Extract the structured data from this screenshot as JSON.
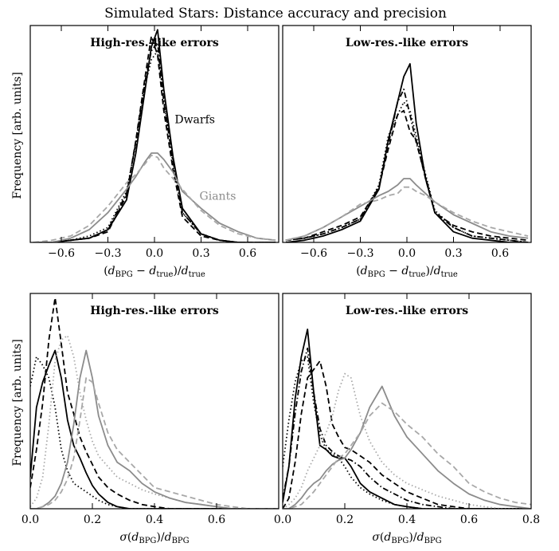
{
  "figure": {
    "title": "Simulated Stars: Distance accuracy and precision"
  },
  "colors": {
    "dwarfs": "#000000",
    "giants": "#8c8c8c",
    "giants_light": "#a8a8a8"
  },
  "chart_data": [
    {
      "type": "line",
      "id": "p1",
      "title": "High-res.-like errors",
      "xlabel": "(dBPG − dtrue)/dtrue",
      "ylabel": "Frequency [arb. units]",
      "xlim": [
        -0.8,
        0.8
      ],
      "ylim": [
        0,
        1.02
      ],
      "xticks": [
        -0.6,
        -0.3,
        0.0,
        0.3,
        0.6
      ],
      "xtick_labels": [
        "−0.6",
        "−0.3",
        "0.0",
        "0.3",
        "0.6"
      ],
      "annotations": [
        {
          "text": "Dwarfs",
          "x": 0.13,
          "y": 0.56,
          "color": "#000000"
        },
        {
          "text": "Giants",
          "x": 0.29,
          "y": 0.2,
          "color": "#8c8c8c"
        }
      ],
      "x": [
        -0.78,
        -0.66,
        -0.54,
        -0.42,
        -0.3,
        -0.18,
        -0.12,
        -0.06,
        -0.02,
        0.02,
        0.06,
        0.12,
        0.18,
        0.3,
        0.42,
        0.54,
        0.66,
        0.78
      ],
      "series": [
        {
          "color": "#000000",
          "dash": "solid",
          "values": [
            0.0,
            0.0,
            0.01,
            0.02,
            0.06,
            0.2,
            0.42,
            0.72,
            0.92,
            1.0,
            0.72,
            0.4,
            0.16,
            0.04,
            0.01,
            0.0,
            0.0,
            0.0
          ]
        },
        {
          "color": "#000000",
          "dash": "dashed",
          "values": [
            0.0,
            0.0,
            0.01,
            0.02,
            0.05,
            0.22,
            0.48,
            0.78,
            0.97,
            0.88,
            0.62,
            0.34,
            0.12,
            0.03,
            0.01,
            0.0,
            0.0,
            0.0
          ]
        },
        {
          "color": "#000000",
          "dash": "dotted",
          "values": [
            0.0,
            0.0,
            0.01,
            0.03,
            0.07,
            0.24,
            0.46,
            0.74,
            0.86,
            0.9,
            0.68,
            0.36,
            0.14,
            0.04,
            0.01,
            0.0,
            0.0,
            0.0
          ]
        },
        {
          "color": "#000000",
          "dash": "dashdot",
          "values": [
            0.0,
            0.0,
            0.01,
            0.02,
            0.06,
            0.23,
            0.47,
            0.76,
            0.9,
            0.94,
            0.66,
            0.38,
            0.14,
            0.04,
            0.01,
            0.0,
            0.0,
            0.0
          ]
        },
        {
          "color": "#8c8c8c",
          "dash": "solid",
          "values": [
            0.0,
            0.0,
            0.02,
            0.06,
            0.14,
            0.25,
            0.31,
            0.38,
            0.42,
            0.42,
            0.39,
            0.33,
            0.24,
            0.16,
            0.09,
            0.05,
            0.02,
            0.01
          ]
        },
        {
          "color": "#a8a8a8",
          "dash": "dashed",
          "values": [
            0.0,
            0.01,
            0.03,
            0.08,
            0.17,
            0.28,
            0.32,
            0.37,
            0.41,
            0.4,
            0.35,
            0.3,
            0.25,
            0.15,
            0.08,
            0.04,
            0.02,
            0.01
          ]
        }
      ]
    },
    {
      "type": "line",
      "id": "p2",
      "title": "Low-res.-like errors",
      "xlabel": "(dBPG − dtrue)/dtrue",
      "ylabel": "",
      "xlim": [
        -0.8,
        0.8
      ],
      "ylim": [
        0,
        1.02
      ],
      "xticks": [
        -0.6,
        -0.3,
        0.0,
        0.3,
        0.6
      ],
      "xtick_labels": [
        "−0.6",
        "−0.3",
        "0.0",
        "0.3",
        "0.6"
      ],
      "annotations": [],
      "x": [
        -0.78,
        -0.66,
        -0.54,
        -0.42,
        -0.3,
        -0.18,
        -0.12,
        -0.06,
        -0.02,
        0.02,
        0.06,
        0.12,
        0.18,
        0.3,
        0.42,
        0.54,
        0.66,
        0.78
      ],
      "series": [
        {
          "color": "#000000",
          "dash": "solid",
          "values": [
            0.0,
            0.01,
            0.03,
            0.06,
            0.1,
            0.25,
            0.48,
            0.66,
            0.78,
            0.84,
            0.56,
            0.3,
            0.14,
            0.05,
            0.02,
            0.01,
            0.0,
            0.0
          ]
        },
        {
          "color": "#000000",
          "dash": "dashed",
          "values": [
            0.01,
            0.02,
            0.05,
            0.08,
            0.12,
            0.26,
            0.44,
            0.6,
            0.62,
            0.52,
            0.48,
            0.3,
            0.14,
            0.08,
            0.05,
            0.03,
            0.02,
            0.01
          ]
        },
        {
          "color": "#000000",
          "dash": "dotted",
          "values": [
            0.01,
            0.02,
            0.04,
            0.07,
            0.11,
            0.27,
            0.5,
            0.6,
            0.66,
            0.62,
            0.5,
            0.32,
            0.15,
            0.07,
            0.03,
            0.02,
            0.01,
            0.0
          ]
        },
        {
          "color": "#000000",
          "dash": "dashdot",
          "values": [
            0.01,
            0.02,
            0.04,
            0.07,
            0.11,
            0.26,
            0.46,
            0.66,
            0.72,
            0.6,
            0.47,
            0.31,
            0.14,
            0.07,
            0.03,
            0.02,
            0.01,
            0.0
          ]
        },
        {
          "color": "#8c8c8c",
          "dash": "solid",
          "values": [
            0.01,
            0.03,
            0.07,
            0.12,
            0.17,
            0.22,
            0.24,
            0.27,
            0.3,
            0.3,
            0.27,
            0.23,
            0.19,
            0.13,
            0.09,
            0.05,
            0.03,
            0.02
          ]
        },
        {
          "color": "#a8a8a8",
          "dash": "dashed",
          "values": [
            0.01,
            0.03,
            0.07,
            0.12,
            0.18,
            0.2,
            0.22,
            0.23,
            0.26,
            0.26,
            0.24,
            0.22,
            0.19,
            0.14,
            0.1,
            0.07,
            0.05,
            0.03
          ]
        }
      ]
    },
    {
      "type": "line",
      "id": "p3",
      "title": "High-res.-like errors",
      "xlabel": "σ(dBPG)/dBPG",
      "ylabel": "Frequency [arb. units]",
      "xlim": [
        0.0,
        0.8
      ],
      "ylim": [
        0,
        1.02
      ],
      "xticks": [
        0.0,
        0.2,
        0.4,
        0.6
      ],
      "xtick_labels": [
        "0.0",
        "0.2",
        "0.4",
        "0.6"
      ],
      "annotations": [],
      "x": [
        0.0,
        0.02,
        0.04,
        0.06,
        0.08,
        0.1,
        0.12,
        0.14,
        0.16,
        0.18,
        0.2,
        0.22,
        0.25,
        0.28,
        0.32,
        0.36,
        0.4,
        0.45,
        0.5,
        0.55,
        0.6,
        0.65,
        0.7,
        0.75,
        0.8
      ],
      "series": [
        {
          "color": "#000000",
          "dash": "solid",
          "values": [
            0.15,
            0.48,
            0.6,
            0.68,
            0.75,
            0.62,
            0.42,
            0.3,
            0.24,
            0.17,
            0.11,
            0.07,
            0.03,
            0.01,
            0.0,
            0.0,
            0.0,
            0.0,
            0.0,
            0.0,
            0.0,
            0.0,
            0.0,
            0.0,
            0.0
          ]
        },
        {
          "color": "#000000",
          "dash": "dashed",
          "values": [
            0.1,
            0.28,
            0.5,
            0.8,
            1.0,
            0.78,
            0.55,
            0.45,
            0.34,
            0.27,
            0.21,
            0.15,
            0.1,
            0.07,
            0.04,
            0.02,
            0.01,
            0.0,
            0.0,
            0.0,
            0.0,
            0.0,
            0.0,
            0.0,
            0.0
          ]
        },
        {
          "color": "#000000",
          "dash": "dotted",
          "values": [
            0.58,
            0.72,
            0.68,
            0.62,
            0.48,
            0.28,
            0.18,
            0.12,
            0.1,
            0.08,
            0.06,
            0.04,
            0.02,
            0.01,
            0.0,
            0.0,
            0.0,
            0.0,
            0.0,
            0.0,
            0.0,
            0.0,
            0.0,
            0.0,
            0.0
          ]
        },
        {
          "color": "#a8a8a8",
          "dash": "dotted",
          "values": [
            0.01,
            0.05,
            0.15,
            0.4,
            0.7,
            0.8,
            0.82,
            0.72,
            0.55,
            0.42,
            0.32,
            0.25,
            0.2,
            0.15,
            0.12,
            0.09,
            0.07,
            0.05,
            0.03,
            0.02,
            0.01,
            0.0,
            0.0,
            0.0,
            0.0
          ]
        },
        {
          "color": "#8c8c8c",
          "dash": "solid",
          "values": [
            0.0,
            0.0,
            0.01,
            0.03,
            0.06,
            0.12,
            0.22,
            0.4,
            0.62,
            0.75,
            0.62,
            0.44,
            0.3,
            0.22,
            0.18,
            0.12,
            0.08,
            0.05,
            0.03,
            0.02,
            0.01,
            0.0,
            0.0,
            0.0,
            0.0
          ]
        },
        {
          "color": "#a8a8a8",
          "dash": "dashed",
          "values": [
            0.0,
            0.0,
            0.01,
            0.02,
            0.04,
            0.08,
            0.14,
            0.24,
            0.42,
            0.62,
            0.6,
            0.5,
            0.36,
            0.28,
            0.22,
            0.16,
            0.1,
            0.08,
            0.06,
            0.04,
            0.02,
            0.01,
            0.0,
            0.0,
            0.0
          ]
        }
      ]
    },
    {
      "type": "line",
      "id": "p4",
      "title": "Low-res.-like errors",
      "xlabel": "σ(dBPG)/dBPG",
      "ylabel": "",
      "xlim": [
        0.0,
        0.8
      ],
      "ylim": [
        0,
        1.02
      ],
      "xticks": [
        0.0,
        0.2,
        0.4,
        0.6,
        0.8
      ],
      "xtick_labels": [
        "0.0",
        "0.2",
        "0.4",
        "0.6",
        "0.8"
      ],
      "annotations": [],
      "x": [
        0.0,
        0.02,
        0.04,
        0.06,
        0.08,
        0.1,
        0.12,
        0.14,
        0.16,
        0.18,
        0.2,
        0.22,
        0.25,
        0.28,
        0.32,
        0.36,
        0.4,
        0.45,
        0.5,
        0.55,
        0.6,
        0.65,
        0.7,
        0.75,
        0.8
      ],
      "series": [
        {
          "color": "#000000",
          "dash": "solid",
          "values": [
            0.03,
            0.2,
            0.52,
            0.72,
            0.85,
            0.55,
            0.3,
            0.28,
            0.25,
            0.24,
            0.24,
            0.2,
            0.12,
            0.08,
            0.05,
            0.02,
            0.01,
            0.0,
            0.0,
            0.0,
            0.0,
            0.0,
            0.0,
            0.0,
            0.0
          ]
        },
        {
          "color": "#000000",
          "dash": "dashed",
          "values": [
            0.0,
            0.05,
            0.22,
            0.45,
            0.62,
            0.66,
            0.7,
            0.58,
            0.4,
            0.34,
            0.29,
            0.28,
            0.25,
            0.22,
            0.16,
            0.12,
            0.08,
            0.05,
            0.02,
            0.01,
            0.0,
            0.0,
            0.0,
            0.0,
            0.0
          ]
        },
        {
          "color": "#000000",
          "dash": "dotted",
          "values": [
            0.2,
            0.42,
            0.6,
            0.7,
            0.72,
            0.5,
            0.35,
            0.28,
            0.26,
            0.24,
            0.2,
            0.15,
            0.1,
            0.07,
            0.04,
            0.02,
            0.01,
            0.0,
            0.0,
            0.0,
            0.0,
            0.0,
            0.0,
            0.0,
            0.0
          ]
        },
        {
          "color": "#000000",
          "dash": "dashdot",
          "values": [
            0.05,
            0.2,
            0.45,
            0.65,
            0.76,
            0.55,
            0.38,
            0.3,
            0.27,
            0.25,
            0.24,
            0.23,
            0.2,
            0.15,
            0.1,
            0.07,
            0.04,
            0.02,
            0.01,
            0.0,
            0.0,
            0.0,
            0.0,
            0.0,
            0.0
          ]
        },
        {
          "color": "#a8a8a8",
          "dash": "dotted",
          "values": [
            0.0,
            0.02,
            0.05,
            0.1,
            0.18,
            0.24,
            0.3,
            0.36,
            0.44,
            0.56,
            0.64,
            0.62,
            0.44,
            0.32,
            0.22,
            0.16,
            0.12,
            0.09,
            0.06,
            0.04,
            0.02,
            0.01,
            0.0,
            0.0,
            0.0
          ]
        },
        {
          "color": "#8c8c8c",
          "dash": "solid",
          "values": [
            0.0,
            0.0,
            0.02,
            0.05,
            0.09,
            0.12,
            0.14,
            0.18,
            0.21,
            0.23,
            0.24,
            0.28,
            0.36,
            0.48,
            0.58,
            0.44,
            0.34,
            0.26,
            0.18,
            0.12,
            0.07,
            0.04,
            0.02,
            0.01,
            0.0
          ]
        },
        {
          "color": "#a8a8a8",
          "dash": "dashed",
          "values": [
            0.0,
            0.0,
            0.01,
            0.02,
            0.05,
            0.08,
            0.12,
            0.16,
            0.2,
            0.24,
            0.26,
            0.3,
            0.36,
            0.44,
            0.5,
            0.46,
            0.4,
            0.34,
            0.26,
            0.2,
            0.12,
            0.08,
            0.05,
            0.03,
            0.02
          ]
        }
      ]
    }
  ]
}
